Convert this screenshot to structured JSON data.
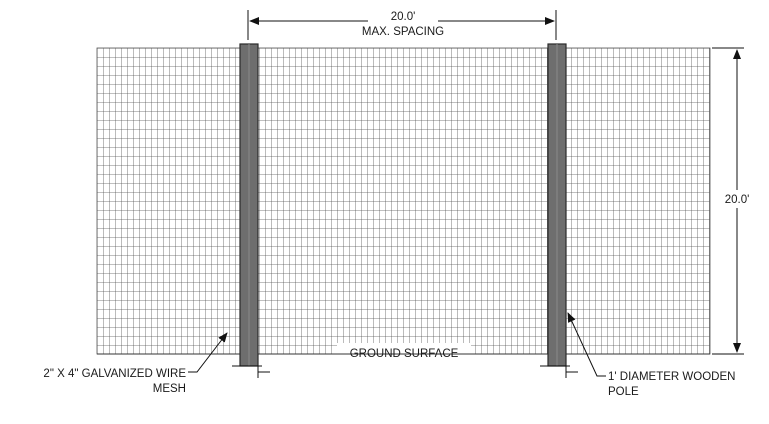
{
  "dimensions": {
    "spacing_value": "20.0'",
    "spacing_label": "MAX. SPACING",
    "height_value": "20.0'"
  },
  "labels": {
    "ground": "GROUND SURFACE",
    "mesh_line1": "2\" X 4\" GALVANIZED WIRE",
    "mesh_line2": "MESH",
    "pole_line1": "1' DIAMETER  WOODEN",
    "pole_line2": "POLE"
  },
  "colors": {
    "mesh": "#555555",
    "pole_fill": "#6e6e6e",
    "pole_stroke": "#2a2a2a",
    "line": "#111111"
  }
}
